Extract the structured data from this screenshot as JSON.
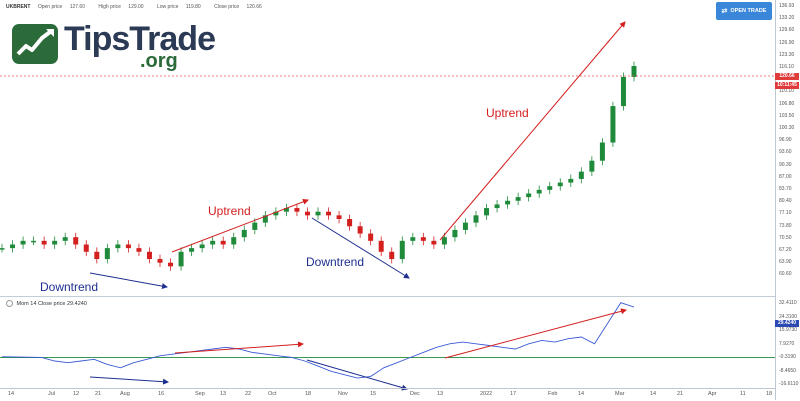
{
  "header": {
    "symbol": "UKBRENT",
    "stats": [
      {
        "label": "Open price",
        "value": "127.60"
      },
      {
        "label": "High price",
        "value": "129.00"
      },
      {
        "label": "Low price",
        "value": "119.80"
      },
      {
        "label": "Close price",
        "value": "120.66"
      }
    ]
  },
  "logo": {
    "name": "TipsTrade",
    "suffix": ".org"
  },
  "open_trade_label": "OPEN TRADE",
  "price_axis": [
    "136.93",
    "133.20",
    "129.60",
    "126.90",
    "123.30",
    "116.10",
    "113.40",
    "110.10",
    "106.80",
    "103.50",
    "100.30",
    "96.90",
    "93.60",
    "90.30",
    "87.00",
    "83.70",
    "80.40",
    "77.10",
    "73.80",
    "70.50",
    "67.20",
    "63.90",
    "60.60"
  ],
  "current_price": "120.66",
  "countdown": "10:11:45",
  "momentum": {
    "name": "Mom",
    "period": "14",
    "source": "Close price",
    "value": "29.4240"
  },
  "momentum_axis": [
    "32.4110",
    "24.3100",
    "15.9730",
    "7.9270",
    "-0.3190",
    "-8.4650",
    "-16.6110"
  ],
  "time_axis": [
    "14",
    "Jul",
    "12",
    "21",
    "Aug",
    "16",
    "Sep",
    "13",
    "22",
    "Oct",
    "18",
    "Nov",
    "15",
    "Dec",
    "13",
    "2022",
    "17",
    "Feb",
    "14",
    "Mar",
    "14",
    "21",
    "Apr",
    "11",
    "18"
  ],
  "annotations": {
    "uptrend": "Uptrend",
    "downtrend": "Downtrend"
  },
  "colors": {
    "up": "#1e8a3a",
    "down": "#d41f1f",
    "uptrend_arrow": "#d41f1f",
    "downtrend_arrow": "#1e2f8f",
    "momentum_line": "#3b5bd6"
  },
  "chart_data": [
    {
      "type": "line",
      "title": "UKBRENT",
      "series": [
        {
          "values": [
            71,
            72,
            73,
            73,
            72,
            73,
            74,
            72,
            70,
            68,
            71,
            72,
            71,
            70,
            68,
            67,
            66,
            70,
            71,
            72,
            73,
            72,
            74,
            76,
            78,
            80,
            81,
            82,
            81,
            80,
            81,
            80,
            79,
            77,
            75,
            73,
            70,
            68,
            73,
            74,
            73,
            72,
            74,
            76,
            78,
            80,
            82,
            83,
            84,
            85,
            86,
            87,
            88,
            89,
            90,
            92,
            95,
            100,
            110,
            118,
            121
          ]
        }
      ],
      "ylim": [
        60.6,
        136.93
      ]
    },
    {
      "type": "line",
      "title": "Mom 14 Close price",
      "series": [
        {
          "values": [
            0.5,
            0.4,
            0.2,
            0.0,
            -2,
            -3,
            -2,
            -1,
            -4,
            -6,
            -3,
            -1,
            1,
            2,
            3,
            4,
            5,
            6,
            5,
            3,
            2,
            1,
            0,
            -2,
            -5,
            -8,
            -10,
            -12,
            -11,
            -6,
            -3,
            0,
            3,
            6,
            8,
            9,
            8,
            7,
            6,
            5,
            8,
            10,
            9,
            11,
            12,
            8,
            20,
            32,
            29.4
          ]
        }
      ],
      "ylim": [
        -16.6,
        32.4
      ]
    }
  ]
}
